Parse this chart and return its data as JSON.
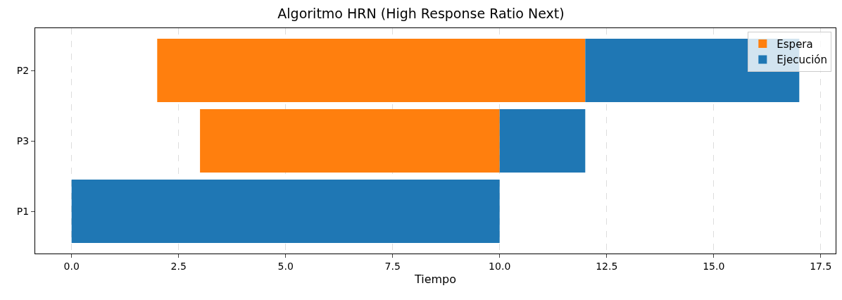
{
  "chart_data": {
    "type": "bar",
    "title": "Algoritmo HRN (High Response Ratio Next)",
    "xlabel": "Tiempo",
    "orientation": "horizontal",
    "categories": [
      "P2",
      "P3",
      "P1"
    ],
    "series": [
      {
        "name": "Espera",
        "color": "#ff7f0e",
        "base": [
          2,
          3,
          null
        ],
        "values": [
          10,
          7,
          null
        ]
      },
      {
        "name": "Ejecución",
        "color": "#1f77b4",
        "base": [
          12,
          10,
          0
        ],
        "values": [
          5,
          2,
          10
        ]
      }
    ],
    "xlim": [
      -0.85,
      17.85
    ],
    "xticks": [
      {
        "value": 0,
        "label": "0.0"
      },
      {
        "value": 2.5,
        "label": "2.5"
      },
      {
        "value": 5,
        "label": "5.0"
      },
      {
        "value": 7.5,
        "label": "7.5"
      },
      {
        "value": 10,
        "label": "10.0"
      },
      {
        "value": 12.5,
        "label": "12.5"
      },
      {
        "value": 15,
        "label": "15.0"
      },
      {
        "value": 17.5,
        "label": "17.5"
      }
    ],
    "grid": "x",
    "legend": "top right"
  }
}
